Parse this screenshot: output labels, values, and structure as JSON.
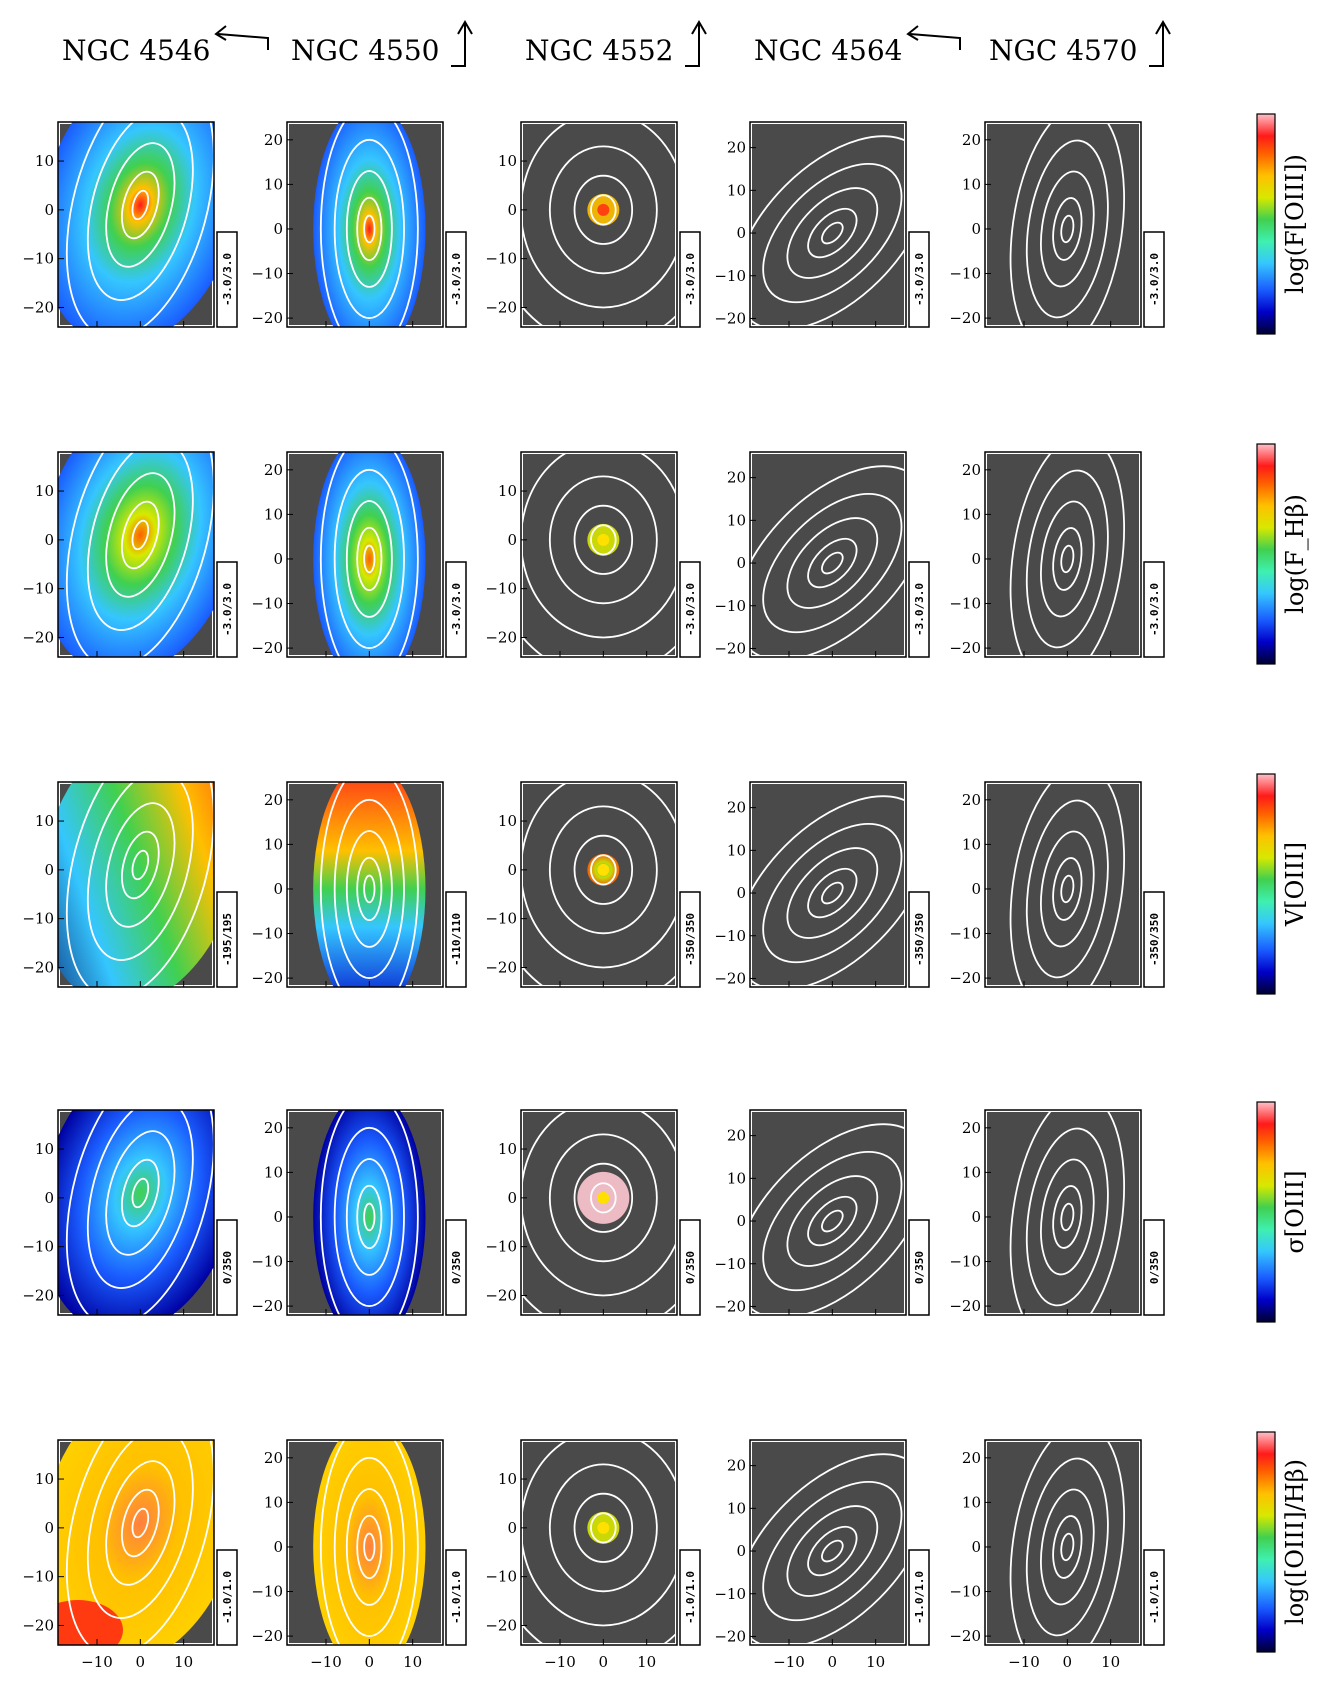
{
  "galaxies": [
    {
      "name": "NGC 4546",
      "arrow": "left"
    },
    {
      "name": "NGC 4550",
      "arrow": "up"
    },
    {
      "name": "NGC 4552",
      "arrow": "up"
    },
    {
      "name": "NGC 4564",
      "arrow": "left"
    },
    {
      "name": "NGC 4570",
      "arrow": "up"
    }
  ],
  "rows": [
    {
      "quantity": "log(F[OIII])",
      "colorbar_label": "log(F[OIII])",
      "ranges": [
        "-3.0/3.0",
        "-3.0/3.0",
        "-3.0/3.0",
        "-3.0/3.0",
        "-3.0/3.0"
      ]
    },
    {
      "quantity": "log(F_Hb)",
      "colorbar_label": "log(F_Hβ)",
      "ranges": [
        "-3.0/3.0",
        "-3.0/3.0",
        "-3.0/3.0",
        "-3.0/3.0",
        "-3.0/3.0"
      ]
    },
    {
      "quantity": "V[OIII]",
      "colorbar_label": "V[OIII]",
      "ranges": [
        "-195/195",
        "-110/110",
        "-350/350",
        "-350/350",
        "-350/350"
      ]
    },
    {
      "quantity": "sigma[OIII]",
      "colorbar_label": "σ[OIII]",
      "ranges": [
        "0/350",
        "0/350",
        "0/350",
        "0/350",
        "0/350"
      ]
    },
    {
      "quantity": "log([OIII]/Hb)",
      "colorbar_label": "log([OIII]/Hβ)",
      "ranges": [
        "-1.0/1.0",
        "-1.0/1.0",
        "-1.0/1.0",
        "-1.0/1.0",
        "-1.0/1.0"
      ]
    }
  ],
  "chart_data": {
    "type": "heatmap",
    "description_of_grid": "5 x 5 panels",
    "x_ticks": [
      "−10",
      "0",
      "10"
    ],
    "y_ticks_by_column": [
      [
        "10",
        "0",
        "−10",
        "−20"
      ],
      [
        "20",
        "10",
        "0",
        "−10",
        "−20"
      ],
      [
        "10",
        "0",
        "−10",
        "−20"
      ],
      [
        "20",
        "10",
        "0",
        "−10",
        "−20"
      ],
      [
        "20",
        "10",
        "0",
        "−10",
        "−20"
      ]
    ],
    "y_ranges_by_column": [
      [
        -24,
        18
      ],
      [
        -22,
        24
      ],
      [
        -24,
        18
      ],
      [
        -22,
        26
      ],
      [
        -22,
        24
      ]
    ],
    "x_range": [
      -19,
      17
    ],
    "colormap": [
      "#000030",
      "#0000c8",
      "#1a5cff",
      "#35c6ff",
      "#3ff0b0",
      "#40d050",
      "#d8e800",
      "#ffc000",
      "#ff6000",
      "#ff1a1a",
      "#ffc0c8"
    ],
    "background_color": "#4a4a4a"
  }
}
